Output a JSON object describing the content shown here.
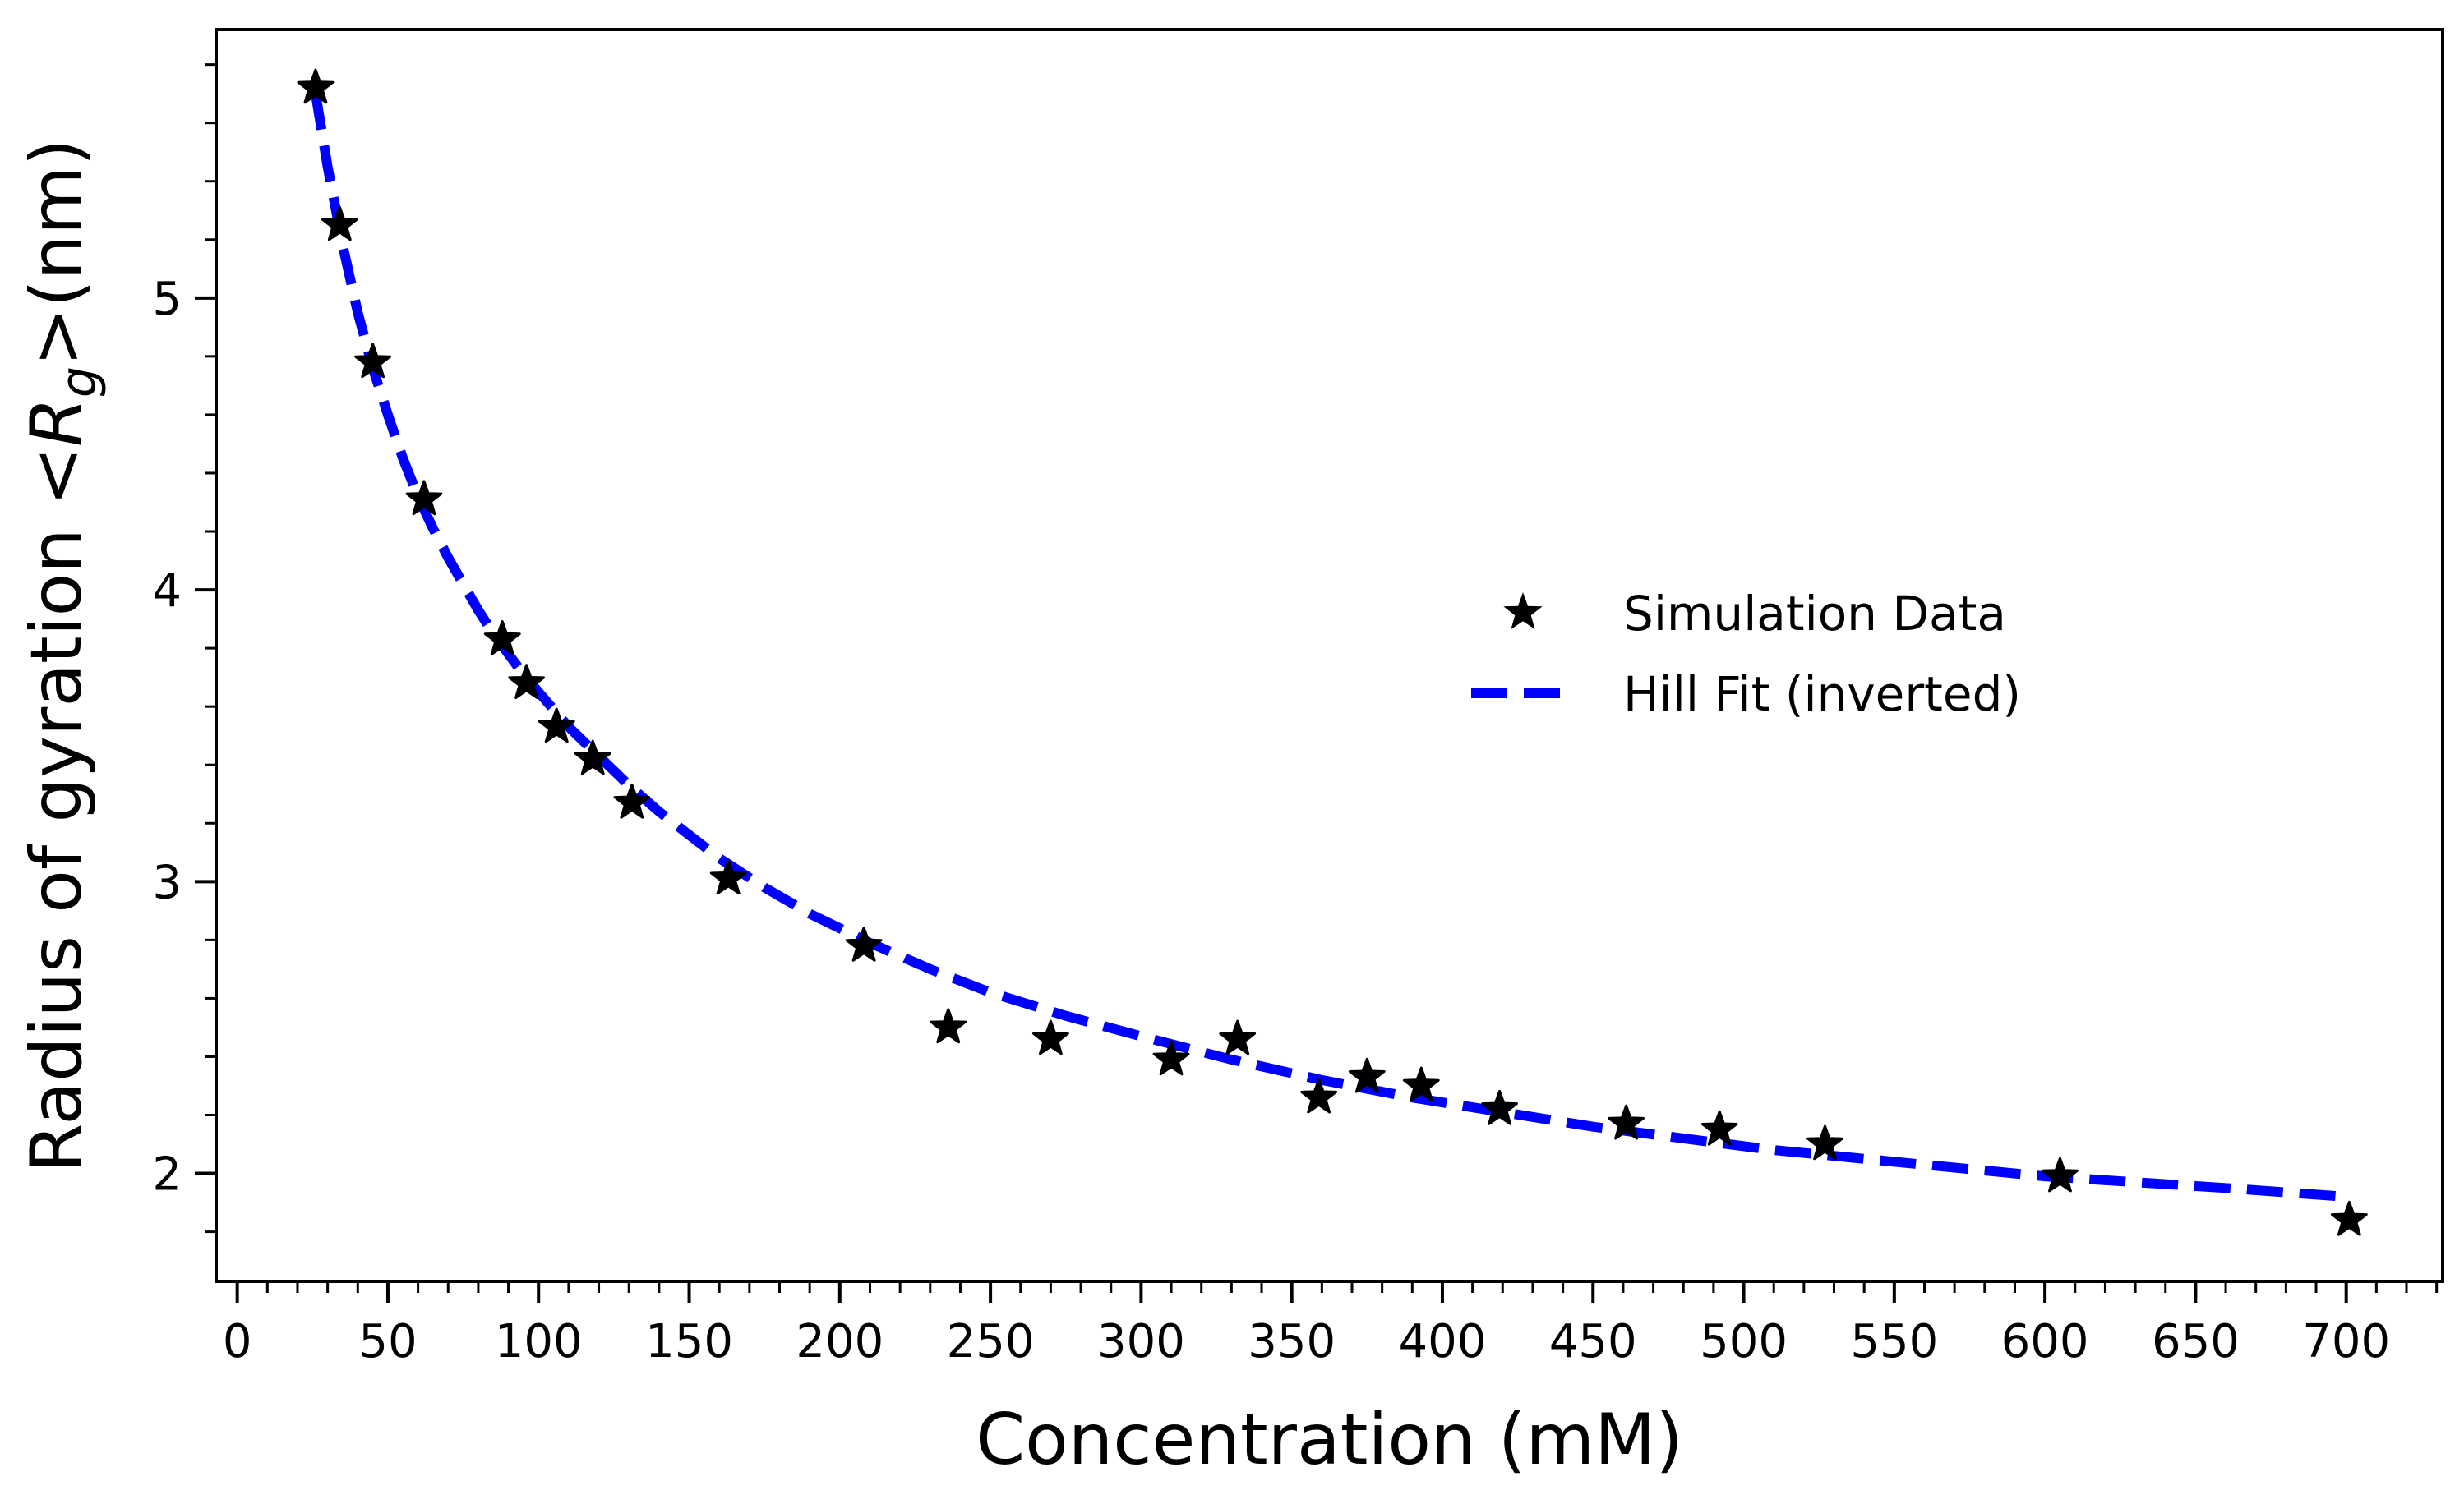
{
  "chart_data": {
    "type": "scatter",
    "title": "",
    "xlabel": "Concentration (mM)",
    "ylabel_prefix": "Radius of gyration <",
    "ylabel_symbol": "R",
    "ylabel_subscript": "g",
    "ylabel_suffix": ">(nm)",
    "xlim": [
      -7,
      732
    ],
    "ylim": [
      1.63,
      5.92
    ],
    "x_ticks": [
      0,
      50,
      100,
      150,
      200,
      250,
      300,
      350,
      400,
      450,
      500,
      550,
      600,
      650,
      700
    ],
    "x_tick_labels": [
      "0",
      "50",
      "100",
      "150",
      "200",
      "250",
      "300",
      "350",
      "400",
      "450",
      "500",
      "550",
      "600",
      "650",
      "700"
    ],
    "x_minor_step": 10,
    "y_ticks": [
      2,
      3,
      4,
      5
    ],
    "y_tick_labels": [
      "2",
      "3",
      "4",
      "5"
    ],
    "y_minor_step": 0.2,
    "grid": false,
    "legend_position": "center-right",
    "series": [
      {
        "name": "Simulation Data",
        "kind": "scatter",
        "marker": "star",
        "color": "#000000",
        "x": [
          26,
          34,
          45,
          62,
          88,
          96,
          106,
          118,
          131,
          163,
          208,
          236,
          270,
          310,
          332,
          359,
          375,
          393,
          419,
          461,
          492,
          527,
          605,
          701
        ],
        "y": [
          5.72,
          5.25,
          4.78,
          4.31,
          3.83,
          3.68,
          3.53,
          3.42,
          3.27,
          3.01,
          2.78,
          2.5,
          2.46,
          2.39,
          2.46,
          2.26,
          2.33,
          2.3,
          2.22,
          2.17,
          2.15,
          2.1,
          1.99,
          1.84
        ]
      },
      {
        "name": "Hill Fit (inverted)",
        "kind": "line",
        "style": "dashed",
        "color": "#0000ff",
        "x": [
          26,
          30,
          35,
          40,
          45,
          50,
          55,
          60,
          65,
          70,
          75,
          80,
          85,
          90,
          95,
          100,
          110,
          120,
          130,
          140,
          150,
          160,
          175,
          190,
          210,
          230,
          250,
          275,
          300,
          330,
          360,
          390,
          420,
          450,
          480,
          510,
          540,
          570,
          600,
          630,
          660,
          700
        ],
        "y": [
          5.7,
          5.45,
          5.18,
          4.95,
          4.76,
          4.6,
          4.45,
          4.32,
          4.21,
          4.11,
          4.02,
          3.93,
          3.85,
          3.78,
          3.71,
          3.65,
          3.53,
          3.43,
          3.33,
          3.24,
          3.16,
          3.08,
          2.98,
          2.89,
          2.79,
          2.7,
          2.62,
          2.54,
          2.47,
          2.39,
          2.32,
          2.26,
          2.21,
          2.16,
          2.12,
          2.08,
          2.05,
          2.02,
          1.99,
          1.97,
          1.95,
          1.92
        ]
      }
    ]
  }
}
